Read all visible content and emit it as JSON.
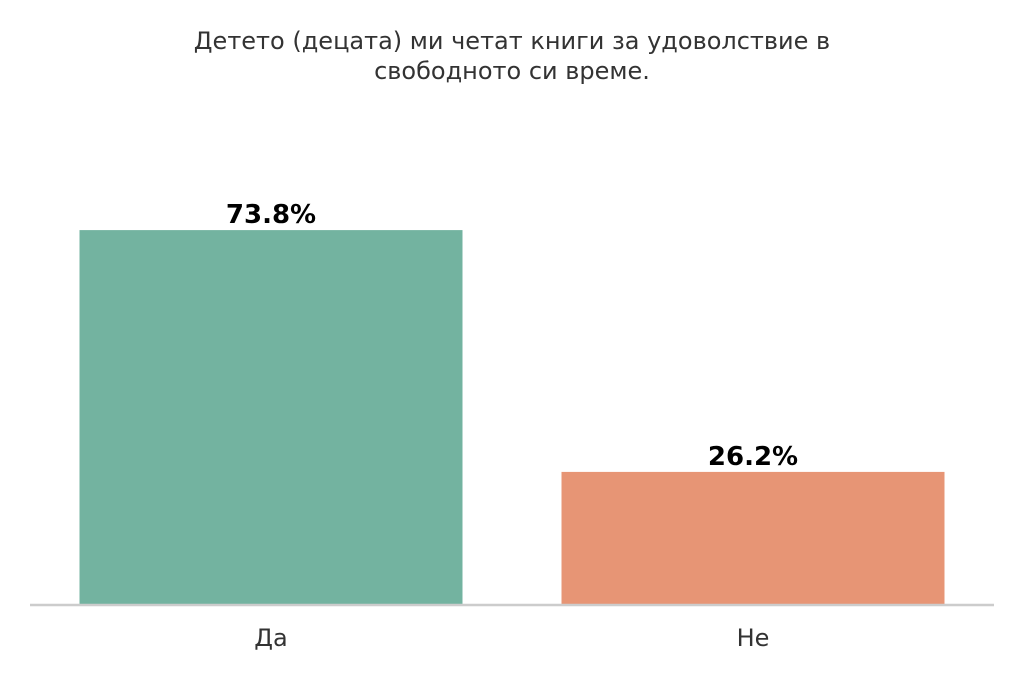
{
  "chart_data": {
    "type": "bar",
    "title_lines": [
      "Детето (децата) ми четат книги за удоволствие в",
      "свободното си време."
    ],
    "categories": [
      "Да",
      "Не"
    ],
    "values": [
      73.8,
      26.2
    ],
    "value_labels": [
      "73.8%",
      "26.2%"
    ],
    "colors": [
      "#73b3a0",
      "#e79575"
    ],
    "ylim": [
      0,
      100
    ],
    "grid": false,
    "legend": "none",
    "xlabel": "",
    "ylabel": ""
  }
}
